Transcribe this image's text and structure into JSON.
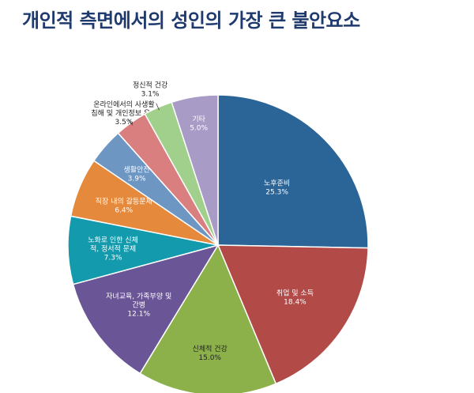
{
  "page": {
    "title": "개인적 측면에서의 성인의 가장 큰 불안요소"
  },
  "chart_data": {
    "type": "pie",
    "title": "개인적 측면에서의 성인의 가장 큰 불안요소",
    "unit": "%",
    "start": "12 o'clock, clockwise",
    "slices": [
      {
        "label": "노후준비",
        "value": 25.3,
        "value_label": "25.3%",
        "color": "#2b6496"
      },
      {
        "label": "취업 및 소득",
        "value": 18.4,
        "value_label": "18.4%",
        "color": "#b24a48"
      },
      {
        "label": "신체적 건강",
        "value": 15.0,
        "value_label": "15.0%",
        "color": "#8db14a"
      },
      {
        "label": "자녀교육, 가족부양 및 간병",
        "value": 12.1,
        "value_label": "12.1%",
        "color": "#6a5596"
      },
      {
        "label": "노화로 인한 신체적, 정서적 문제",
        "value": 7.3,
        "value_label": "7.3%",
        "color": "#139aac"
      },
      {
        "label": "직장 내의 갈등문제",
        "value": 6.4,
        "value_label": "6.4%",
        "color": "#e58a3c"
      },
      {
        "label": "생활안전",
        "value": 3.9,
        "value_label": "3.9%",
        "color": "#6e96c3"
      },
      {
        "label": "온라인에서의 사생활 침해 및 개인정보 유출",
        "value": 3.5,
        "value_label": "3.5%",
        "color": "#d97f7f"
      },
      {
        "label": "정신적 건강",
        "value": 3.1,
        "value_label": "3.1%",
        "color": "#a1cf8c"
      },
      {
        "label": "기타",
        "value": 5.0,
        "value_label": "5.0%",
        "color": "#a89bc6"
      }
    ]
  }
}
